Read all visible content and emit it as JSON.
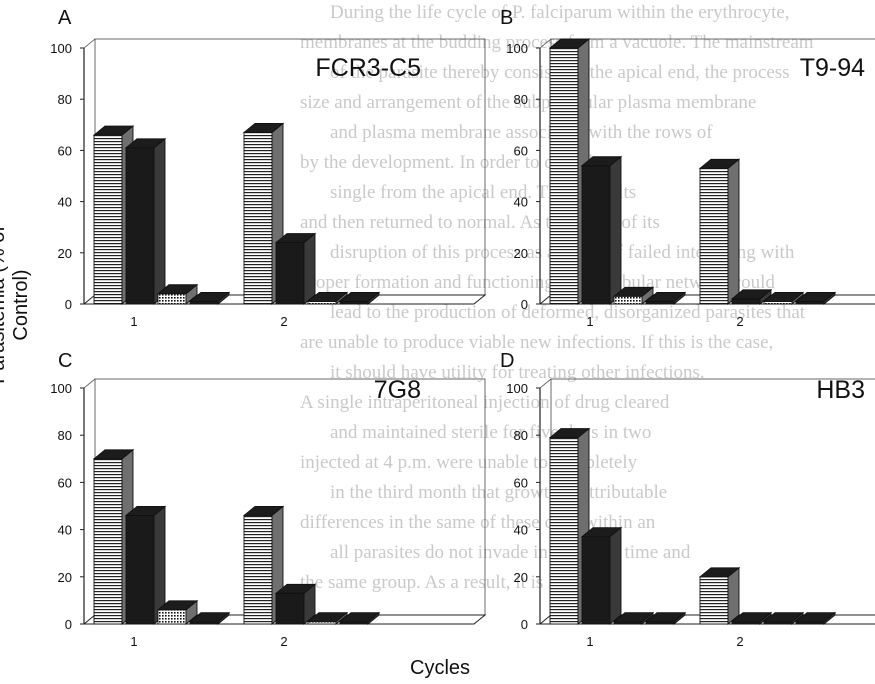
{
  "figure": {
    "ylabel": "Parasitemia (% of Control)",
    "xlabel": "Cycles"
  },
  "chart_data": [
    {
      "type": "bar",
      "panel": "A",
      "title": "FCR3-C5",
      "categories": [
        "1",
        "2"
      ],
      "series": [
        {
          "values": [
            66,
            67
          ],
          "fill": "hstripe"
        },
        {
          "values": [
            61,
            24
          ],
          "fill": "solid"
        },
        {
          "values": [
            4,
            1
          ],
          "fill": "dots"
        },
        {
          "values": [
            1,
            1
          ],
          "fill": "solid"
        }
      ],
      "ylim": [
        0,
        100
      ],
      "yticks": [
        "0",
        "20",
        "40",
        "60",
        "80",
        "100"
      ]
    },
    {
      "type": "bar",
      "panel": "B",
      "title": "T9-94",
      "categories": [
        "1",
        "2"
      ],
      "series": [
        {
          "values": [
            100,
            53
          ],
          "fill": "hstripe"
        },
        {
          "values": [
            54,
            2
          ],
          "fill": "solid"
        },
        {
          "values": [
            3,
            1
          ],
          "fill": "dots"
        },
        {
          "values": [
            1,
            1
          ],
          "fill": "solid"
        }
      ],
      "ylim": [
        0,
        100
      ],
      "yticks": [
        "0",
        "20",
        "40",
        "60",
        "80",
        "100"
      ]
    },
    {
      "type": "bar",
      "panel": "C",
      "title": "7G8",
      "categories": [
        "1",
        "2"
      ],
      "series": [
        {
          "values": [
            70,
            46
          ],
          "fill": "hstripe"
        },
        {
          "values": [
            46,
            13
          ],
          "fill": "solid"
        },
        {
          "values": [
            6,
            1
          ],
          "fill": "dots"
        },
        {
          "values": [
            1,
            1
          ],
          "fill": "solid"
        }
      ],
      "ylim": [
        0,
        100
      ],
      "yticks": [
        "0",
        "20",
        "40",
        "60",
        "80",
        "100"
      ]
    },
    {
      "type": "bar",
      "panel": "D",
      "title": "HB3",
      "categories": [
        "1",
        "2"
      ],
      "series": [
        {
          "values": [
            79,
            20
          ],
          "fill": "hstripe"
        },
        {
          "values": [
            37,
            1
          ],
          "fill": "solid"
        },
        {
          "values": [
            1,
            1
          ],
          "fill": "solid"
        },
        {
          "values": [
            1,
            1
          ],
          "fill": "solid"
        }
      ],
      "ylim": [
        0,
        100
      ],
      "yticks": [
        "0",
        "20",
        "40",
        "60",
        "80",
        "100"
      ]
    }
  ],
  "background_text": [
    "During the life cycle of P. falciparum within the erythrocyte,",
    "membranes at the budding process from a vacuole. The mainstream",
    "of the parasite thereby consists of the apical end, the process",
    "size and arrangement of the subpellicular plasma membrane",
    "and plasma membrane associated with the rows of",
    "by the development. In order to contribute",
    "single from the apical end. These results",
    "and then returned to normal. As the shape of its",
    "disruption of this process as a result of failed interfering with",
    "proper formation and functioning of the tubular network could",
    "lead to the production of deformed, disorganized parasites that",
    "are unable to produce viable new infections. If this is the case,",
    "it should have utility for treating other infections.",
    "A single intraperitoneal injection of drug cleared",
    "and maintained sterile for five days in two",
    "injected at 4 p.m. were unable to completely",
    "in the third month that growth is attributable",
    "differences in the same of these cells within an",
    "all parasites do not invade in the same time and",
    "the same group. As a result, it is likely"
  ]
}
